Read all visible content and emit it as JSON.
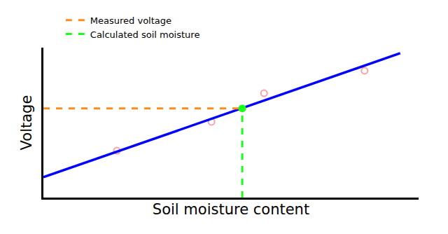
{
  "chart_data": {
    "type": "scatter",
    "x_label": "Soil moisture content",
    "y_label": "Voltage",
    "xlim": [
      0,
      10
    ],
    "ylim": [
      0,
      10
    ],
    "tick_labels": false,
    "grid": false,
    "legend": "top left",
    "series": [
      {
        "type": "scatter",
        "marker": "circle-open",
        "color": "#f4a3a8",
        "x": [
          1.96,
          4.48,
          5.88,
          8.56
        ],
        "values": [
          3.13,
          5.05,
          6.96,
          8.46
        ]
      },
      {
        "type": "line",
        "line_style": "solid",
        "color": "#0000ff",
        "x": [
          0,
          9.51
        ],
        "values": [
          1.36,
          9.63
        ]
      },
      {
        "name": "Measured voltage",
        "type": "line",
        "line_style": "dash",
        "color": "#ff8c1a",
        "x": [
          0,
          5.3
        ],
        "values": [
          5.95,
          5.95
        ]
      },
      {
        "name": "Calculated soil moisture",
        "type": "line",
        "line_style": "dash",
        "color": "#1aff1a",
        "x": [
          5.3,
          5.3
        ],
        "values": [
          0,
          5.95
        ]
      },
      {
        "type": "scatter",
        "marker": "circle",
        "color": "#1aff1a",
        "x": [
          5.3
        ],
        "values": [
          5.95
        ]
      }
    ]
  }
}
